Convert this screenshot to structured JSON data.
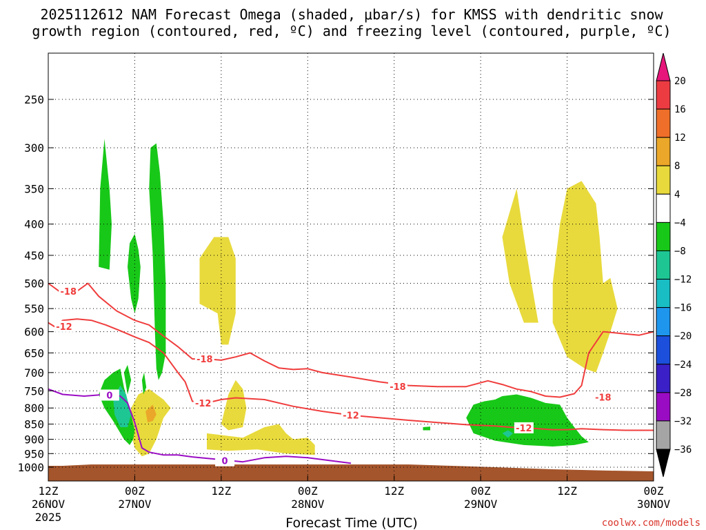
{
  "chart_data": {
    "type": "heatmap",
    "title_lines": [
      "2025112612 NAM Forecast Omega (shaded, μbar/s) for KMSS with dendritic snow",
      "growth region (contoured, red, ºC) and freezing level (contoured, purple, ºC)"
    ],
    "xlabel": "Forecast Time (UTC)",
    "credit": "coolwx.com/models",
    "x_ticks": [
      {
        "hour": 0,
        "lines": [
          "12Z",
          "26NOV",
          "2025"
        ]
      },
      {
        "hour": 12,
        "lines": [
          "00Z",
          "27NOV"
        ]
      },
      {
        "hour": 24,
        "lines": [
          "12Z"
        ]
      },
      {
        "hour": 36,
        "lines": [
          "00Z",
          "28NOV"
        ]
      },
      {
        "hour": 48,
        "lines": [
          "12Z"
        ]
      },
      {
        "hour": 60,
        "lines": [
          "00Z",
          "29NOV"
        ]
      },
      {
        "hour": 72,
        "lines": [
          "12Z"
        ]
      },
      {
        "hour": 84,
        "lines": [
          "00Z",
          "30NOV"
        ]
      }
    ],
    "x_range_hours": [
      0,
      84
    ],
    "y_ticks": [
      250,
      300,
      350,
      400,
      450,
      500,
      550,
      600,
      650,
      700,
      750,
      800,
      850,
      900,
      950,
      1000
    ],
    "y_range_hpa": [
      200,
      1050
    ],
    "y_scale": "log-pressure (inverted)",
    "grid": true,
    "colorbar": {
      "labels": [
        "20",
        "16",
        "12",
        "8",
        "4",
        "−4",
        "−8",
        "−12",
        "−16",
        "−20",
        "−24",
        "−28",
        "−32",
        "−36"
      ],
      "colors": [
        "#ec3c42",
        "#ef6f2a",
        "#eaa729",
        "#e8da3c",
        "#ffffff",
        "#18c818",
        "#1ec694",
        "#19bec4",
        "#1e96ee",
        "#1b4fdc",
        "#3a20c6",
        "#9a0cc4",
        "#a5a5a5"
      ],
      "top_arrow_color": "#e6167b",
      "bottom_arrow_color": "#000000"
    },
    "series": [
      {
        "name": "-18",
        "color": "#f03c3c",
        "points": [
          [
            0,
            500
          ],
          [
            1.5,
            515
          ],
          [
            4,
            515
          ],
          [
            5.5,
            500
          ],
          [
            7,
            525
          ],
          [
            9.5,
            555
          ],
          [
            12,
            575
          ],
          [
            14,
            585
          ],
          [
            16,
            610
          ],
          [
            18,
            635
          ],
          [
            20,
            665
          ],
          [
            22,
            665
          ],
          [
            24,
            668
          ],
          [
            26,
            660
          ],
          [
            28,
            650
          ],
          [
            30,
            670
          ],
          [
            32,
            688
          ],
          [
            34,
            692
          ],
          [
            36,
            690
          ],
          [
            38,
            700
          ],
          [
            42,
            712
          ],
          [
            46,
            725
          ],
          [
            50,
            735
          ],
          [
            54,
            738
          ],
          [
            58,
            738
          ],
          [
            61,
            722
          ],
          [
            63,
            732
          ],
          [
            65,
            745
          ],
          [
            67,
            752
          ],
          [
            69,
            765
          ],
          [
            71,
            768
          ],
          [
            73,
            758
          ],
          [
            74,
            735
          ],
          [
            75,
            650
          ],
          [
            77,
            600
          ],
          [
            80,
            605
          ],
          [
            82,
            608
          ],
          [
            84,
            600
          ]
        ]
      },
      {
        "name": "-12",
        "color": "#f03c3c",
        "points": [
          [
            0,
            580
          ],
          [
            1,
            590
          ],
          [
            2,
            575
          ],
          [
            4,
            572
          ],
          [
            6,
            575
          ],
          [
            8,
            585
          ],
          [
            10,
            598
          ],
          [
            12,
            612
          ],
          [
            14,
            625
          ],
          [
            16,
            650
          ],
          [
            18,
            700
          ],
          [
            19,
            725
          ],
          [
            20,
            780
          ],
          [
            22,
            785
          ],
          [
            24,
            775
          ],
          [
            26,
            770
          ],
          [
            30,
            775
          ],
          [
            34,
            795
          ],
          [
            38,
            810
          ],
          [
            42,
            822
          ],
          [
            46,
            830
          ],
          [
            50,
            838
          ],
          [
            54,
            845
          ],
          [
            58,
            852
          ],
          [
            62,
            856
          ],
          [
            64,
            860
          ],
          [
            66,
            862
          ],
          [
            68,
            865
          ],
          [
            70,
            868
          ],
          [
            72,
            868
          ],
          [
            74,
            865
          ],
          [
            77,
            868
          ],
          [
            80,
            870
          ],
          [
            82,
            870
          ],
          [
            84,
            870
          ]
        ]
      },
      {
        "name": "0",
        "color": "#9a0cc4",
        "points": [
          [
            0,
            745
          ],
          [
            2,
            760
          ],
          [
            5,
            765
          ],
          [
            8,
            760
          ],
          [
            10,
            765
          ],
          [
            11,
            785
          ],
          [
            12,
            845
          ],
          [
            13,
            930
          ],
          [
            14,
            945
          ],
          [
            16,
            955
          ],
          [
            18,
            955
          ],
          [
            20,
            962
          ],
          [
            24,
            972
          ],
          [
            27,
            980
          ],
          [
            30,
            965
          ],
          [
            33,
            960
          ],
          [
            36,
            965
          ],
          [
            39,
            975
          ],
          [
            42,
            985
          ]
        ]
      }
    ],
    "omega_regions": [
      {
        "color": "#e8da3c",
        "points": [
          [
            21,
            455
          ],
          [
            23,
            420
          ],
          [
            25,
            420
          ],
          [
            26,
            455
          ],
          [
            26,
            560
          ],
          [
            25,
            630
          ],
          [
            24,
            630
          ],
          [
            23.5,
            560
          ],
          [
            21,
            540
          ]
        ]
      },
      {
        "color": "#e8da3c",
        "points": [
          [
            65,
            350
          ],
          [
            66,
            420
          ],
          [
            67,
            495
          ],
          [
            68,
            580
          ],
          [
            66,
            580
          ],
          [
            64,
            500
          ],
          [
            63,
            420
          ]
        ]
      },
      {
        "color": "#e8da3c",
        "points": [
          [
            70,
            500
          ],
          [
            71,
            400
          ],
          [
            72,
            350
          ],
          [
            74,
            340
          ],
          [
            76,
            370
          ],
          [
            76.5,
            420
          ],
          [
            77,
            500
          ],
          [
            78,
            490
          ],
          [
            79,
            550
          ],
          [
            78,
            600
          ],
          [
            77,
            650
          ],
          [
            76,
            700
          ],
          [
            74.5,
            690
          ],
          [
            72,
            660
          ],
          [
            70,
            580
          ]
        ]
      },
      {
        "color": "#e8da3c",
        "points": [
          [
            11.5,
            800
          ],
          [
            12.5,
            760
          ],
          [
            14,
            745
          ],
          [
            16,
            775
          ],
          [
            17,
            800
          ],
          [
            16,
            830
          ],
          [
            15,
            900
          ],
          [
            14,
            950
          ],
          [
            13,
            960
          ],
          [
            12,
            930
          ],
          [
            11.5,
            880
          ]
        ]
      },
      {
        "color": "#e8da3c",
        "points": [
          [
            24,
            850
          ],
          [
            25,
            760
          ],
          [
            26,
            720
          ],
          [
            27,
            745
          ],
          [
            27.5,
            800
          ],
          [
            27,
            860
          ],
          [
            25,
            870
          ]
        ]
      },
      {
        "color": "#e8da3c",
        "points": [
          [
            22,
            880
          ],
          [
            27,
            895
          ],
          [
            30,
            860
          ],
          [
            32,
            850
          ],
          [
            33,
            880
          ],
          [
            34,
            900
          ],
          [
            36,
            895
          ],
          [
            37,
            920
          ],
          [
            37,
            955
          ],
          [
            33,
            950
          ],
          [
            29,
            935
          ],
          [
            25,
            940
          ],
          [
            22,
            935
          ]
        ]
      },
      {
        "color": "#eaa729",
        "points": [
          [
            13.5,
            810
          ],
          [
            14.5,
            790
          ],
          [
            15,
            820
          ],
          [
            14.5,
            840
          ],
          [
            13.8,
            845
          ]
        ]
      },
      {
        "color": "#18c818",
        "points": [
          [
            7,
            470
          ],
          [
            7.2,
            350
          ],
          [
            7.8,
            290
          ],
          [
            8.5,
            350
          ],
          [
            8.8,
            400
          ],
          [
            8.5,
            475
          ]
        ]
      },
      {
        "color": "#18c818",
        "points": [
          [
            11,
            470
          ],
          [
            11.3,
            430
          ],
          [
            12,
            415
          ],
          [
            12.5,
            440
          ],
          [
            12.8,
            470
          ],
          [
            12.5,
            530
          ],
          [
            12,
            560
          ],
          [
            11.5,
            530
          ]
        ]
      },
      {
        "color": "#18c818",
        "points": [
          [
            14,
            350
          ],
          [
            14.2,
            300
          ],
          [
            15,
            295
          ],
          [
            15.5,
            330
          ],
          [
            16,
            400
          ],
          [
            16.3,
            500
          ],
          [
            16.3,
            650
          ],
          [
            15.8,
            700
          ],
          [
            15.3,
            720
          ],
          [
            15,
            690
          ],
          [
            14.8,
            600
          ],
          [
            14.5,
            450
          ]
        ]
      },
      {
        "color": "#18c818",
        "points": [
          [
            7,
            760
          ],
          [
            7.8,
            720
          ],
          [
            9,
            700
          ],
          [
            10,
            690
          ],
          [
            10.5,
            740
          ],
          [
            11,
            780
          ],
          [
            11.5,
            820
          ],
          [
            12,
            870
          ],
          [
            11.8,
            900
          ],
          [
            11.3,
            920
          ],
          [
            10.5,
            900
          ],
          [
            9,
            840
          ],
          [
            7.8,
            800
          ]
        ]
      },
      {
        "color": "#18c818",
        "points": [
          [
            10.5,
            700
          ],
          [
            11,
            680
          ],
          [
            11.5,
            720
          ],
          [
            11,
            760
          ]
        ]
      },
      {
        "color": "#18c818",
        "points": [
          [
            13,
            720
          ],
          [
            13.3,
            700
          ],
          [
            13.6,
            740
          ],
          [
            13.2,
            760
          ]
        ]
      },
      {
        "color": "#1ec694",
        "points": [
          [
            9,
            770
          ],
          [
            10,
            735
          ],
          [
            10.8,
            760
          ],
          [
            11.5,
            820
          ],
          [
            11,
            860
          ],
          [
            10,
            860
          ],
          [
            9.2,
            820
          ]
        ]
      },
      {
        "color": "#18c818",
        "points": [
          [
            58,
            830
          ],
          [
            59,
            790
          ],
          [
            60.5,
            780
          ],
          [
            62,
            775
          ],
          [
            63,
            765
          ],
          [
            65,
            760
          ],
          [
            67,
            770
          ],
          [
            69,
            785
          ],
          [
            71,
            790
          ],
          [
            72,
            830
          ],
          [
            73,
            860
          ],
          [
            74,
            890
          ],
          [
            75,
            910
          ],
          [
            73,
            920
          ],
          [
            70,
            925
          ],
          [
            66,
            920
          ],
          [
            62,
            905
          ],
          [
            59,
            880
          ]
        ]
      },
      {
        "color": "#1ec694",
        "points": [
          [
            63,
            880
          ],
          [
            63.8,
            870
          ],
          [
            64.5,
            880
          ],
          [
            63.8,
            895
          ]
        ]
      },
      {
        "color": "#18c818",
        "points": [
          [
            52,
            860
          ],
          [
            53,
            858
          ],
          [
            53,
            870
          ],
          [
            52,
            870
          ]
        ]
      }
    ],
    "terrain_color": "#a4552c"
  }
}
